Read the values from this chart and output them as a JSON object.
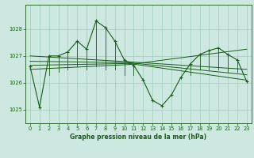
{
  "xlabel": "Graphe pression niveau de la mer (hPa)",
  "bg_color": "#cce8e0",
  "line_color": "#1a5c1a",
  "grid_color": "#9ecfbe",
  "text_color": "#1a5c1a",
  "ylim": [
    1024.5,
    1028.9
  ],
  "yticks": [
    1025,
    1026,
    1027,
    1028
  ],
  "xticks": [
    0,
    1,
    2,
    3,
    4,
    5,
    6,
    7,
    8,
    9,
    10,
    11,
    12,
    13,
    14,
    15,
    16,
    17,
    18,
    19,
    20,
    21,
    22,
    23
  ],
  "x": [
    0,
    1,
    2,
    3,
    4,
    5,
    6,
    7,
    8,
    9,
    10,
    11,
    12,
    13,
    14,
    15,
    16,
    17,
    18,
    19,
    20,
    21,
    22,
    23
  ],
  "y": [
    1026.6,
    1025.1,
    1027.0,
    1027.0,
    1027.15,
    1027.55,
    1027.25,
    1028.3,
    1028.05,
    1027.55,
    1026.85,
    1026.65,
    1026.1,
    1025.35,
    1025.15,
    1025.55,
    1026.2,
    1026.7,
    1027.05,
    1027.2,
    1027.3,
    1027.05,
    1026.85,
    1026.05
  ],
  "spike_base": [
    1026.6,
    1025.1,
    1026.3,
    1026.4,
    1026.5,
    1026.6,
    1026.5,
    1026.6,
    1026.5,
    1026.5,
    1026.3,
    1026.3,
    1026.1,
    1025.35,
    1025.15,
    1025.55,
    1026.2,
    1026.3,
    1026.5,
    1026.5,
    1026.5,
    1026.4,
    1026.4,
    1026.05
  ],
  "trend_lines": [
    {
      "x": [
        0,
        10.5
      ],
      "y": [
        1026.65,
        1026.72
      ]
    },
    {
      "x": [
        0,
        10.5
      ],
      "y": [
        1027.0,
        1026.78
      ]
    },
    {
      "x": [
        0,
        10.5
      ],
      "y": [
        1026.8,
        1026.75
      ]
    },
    {
      "x": [
        0,
        10.5
      ],
      "y": [
        1026.5,
        1026.68
      ]
    },
    {
      "x": [
        10.5,
        23
      ],
      "y": [
        1026.72,
        1026.1
      ]
    },
    {
      "x": [
        10.5,
        23
      ],
      "y": [
        1026.78,
        1026.5
      ]
    },
    {
      "x": [
        10.5,
        23
      ],
      "y": [
        1026.75,
        1026.3
      ]
    },
    {
      "x": [
        10.5,
        23
      ],
      "y": [
        1026.68,
        1027.25
      ]
    }
  ],
  "marker_size": 3.5,
  "linewidth": 0.8,
  "label_fontsize": 5.5,
  "tick_fontsize": 4.8
}
